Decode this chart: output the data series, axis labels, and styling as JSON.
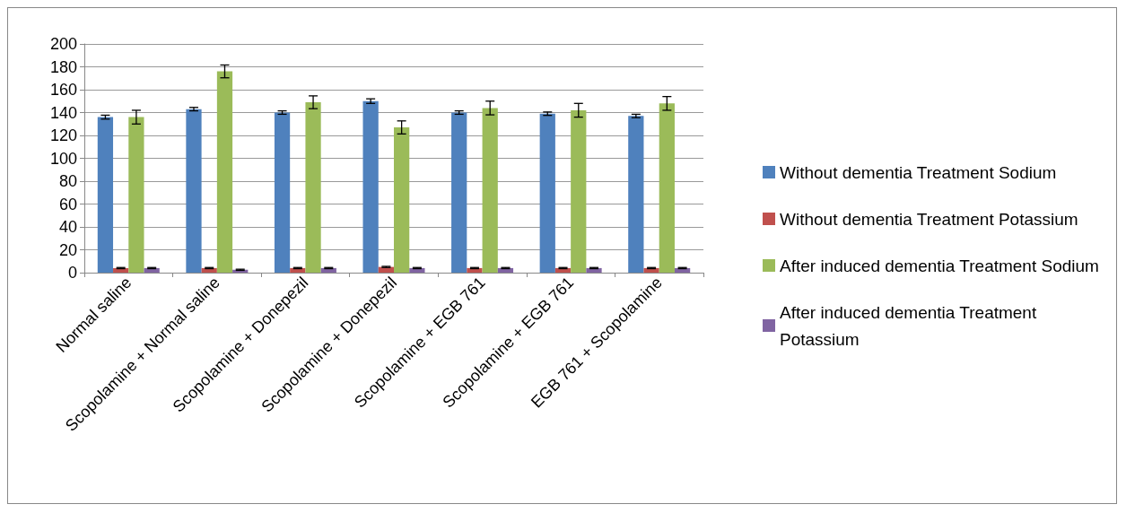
{
  "chart_data": {
    "type": "bar",
    "categories": [
      "Normal saline",
      "Scopolamine + Normal saline",
      "Scopolamine + Donepezil",
      "Scopolamine + Donepezil",
      "Scopolamine + EGB 761",
      "Scopolamine + EGB 761",
      "EGB 761 + Scopolamine"
    ],
    "series": [
      {
        "name": "Without dementia Treatment Sodium",
        "color": "#4f81bd",
        "values": [
          136,
          143,
          140,
          150,
          140,
          139,
          137
        ],
        "errors": [
          1.7,
          1.5,
          1.5,
          2,
          1.5,
          1.5,
          1.5
        ]
      },
      {
        "name": "Without dementia Treatment Potassium",
        "color": "#c0504d",
        "values": [
          4,
          4,
          4,
          5,
          4,
          4,
          4
        ],
        "errors": [
          0.5,
          0.5,
          0.5,
          0.5,
          0.5,
          0.5,
          0.5
        ]
      },
      {
        "name": "After induced dementia Treatment Sodium",
        "color": "#9bbb59",
        "values": [
          136,
          176,
          149,
          127,
          144,
          142,
          148
        ],
        "errors": [
          6,
          5.6,
          5.6,
          5.7,
          6,
          6,
          6
        ]
      },
      {
        "name": "After induced dementia Treatment Potassium",
        "color": "#8064a2",
        "values": [
          4,
          2.5,
          4,
          4,
          4,
          4,
          4
        ],
        "errors": [
          0.5,
          0.5,
          0.5,
          0.5,
          0.5,
          0.5,
          0.5
        ]
      }
    ],
    "ylim": [
      0,
      200
    ],
    "yticks": [
      0,
      20,
      40,
      60,
      80,
      100,
      120,
      140,
      160,
      180,
      200
    ],
    "grid": "y",
    "legend": "right"
  }
}
